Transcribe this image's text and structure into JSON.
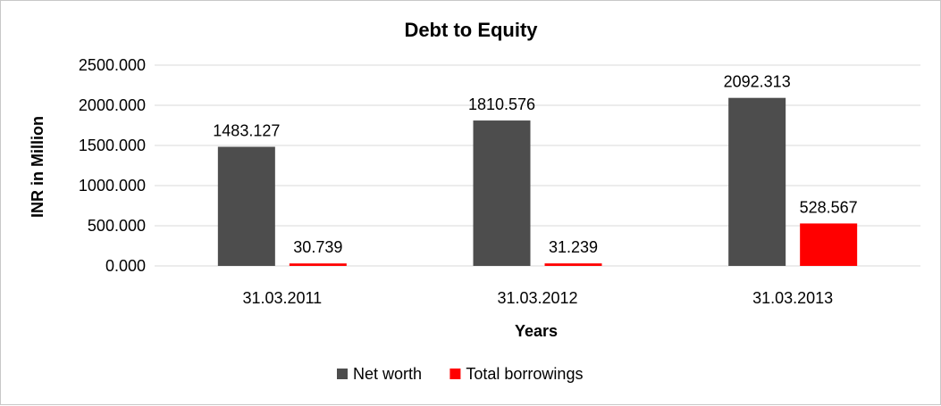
{
  "chart_data": {
    "type": "bar",
    "title": "Debt to Equity",
    "xlabel": "Years",
    "ylabel": "INR in Million",
    "categories": [
      "31.03.2011",
      "31.03.2012",
      "31.03.2013"
    ],
    "series": [
      {
        "name": "Net worth",
        "values": [
          1483.127,
          1810.576,
          2092.313
        ],
        "labels": [
          "1483.127",
          "1810.576",
          "2092.313"
        ],
        "color": "#4d4d4d"
      },
      {
        "name": "Total borrowings",
        "values": [
          30.739,
          31.239,
          528.567
        ],
        "labels": [
          "30.739",
          "31.239",
          "528.567"
        ],
        "color": "#ff0000"
      }
    ],
    "ylim": [
      0,
      2500
    ],
    "yticks": [
      0,
      500,
      1000,
      1500,
      2000,
      2500
    ],
    "ytick_labels": [
      "0.000",
      "500.000",
      "1000.000",
      "1500.000",
      "2000.000",
      "2500.000"
    ],
    "grid": true,
    "legend_position": "bottom"
  }
}
